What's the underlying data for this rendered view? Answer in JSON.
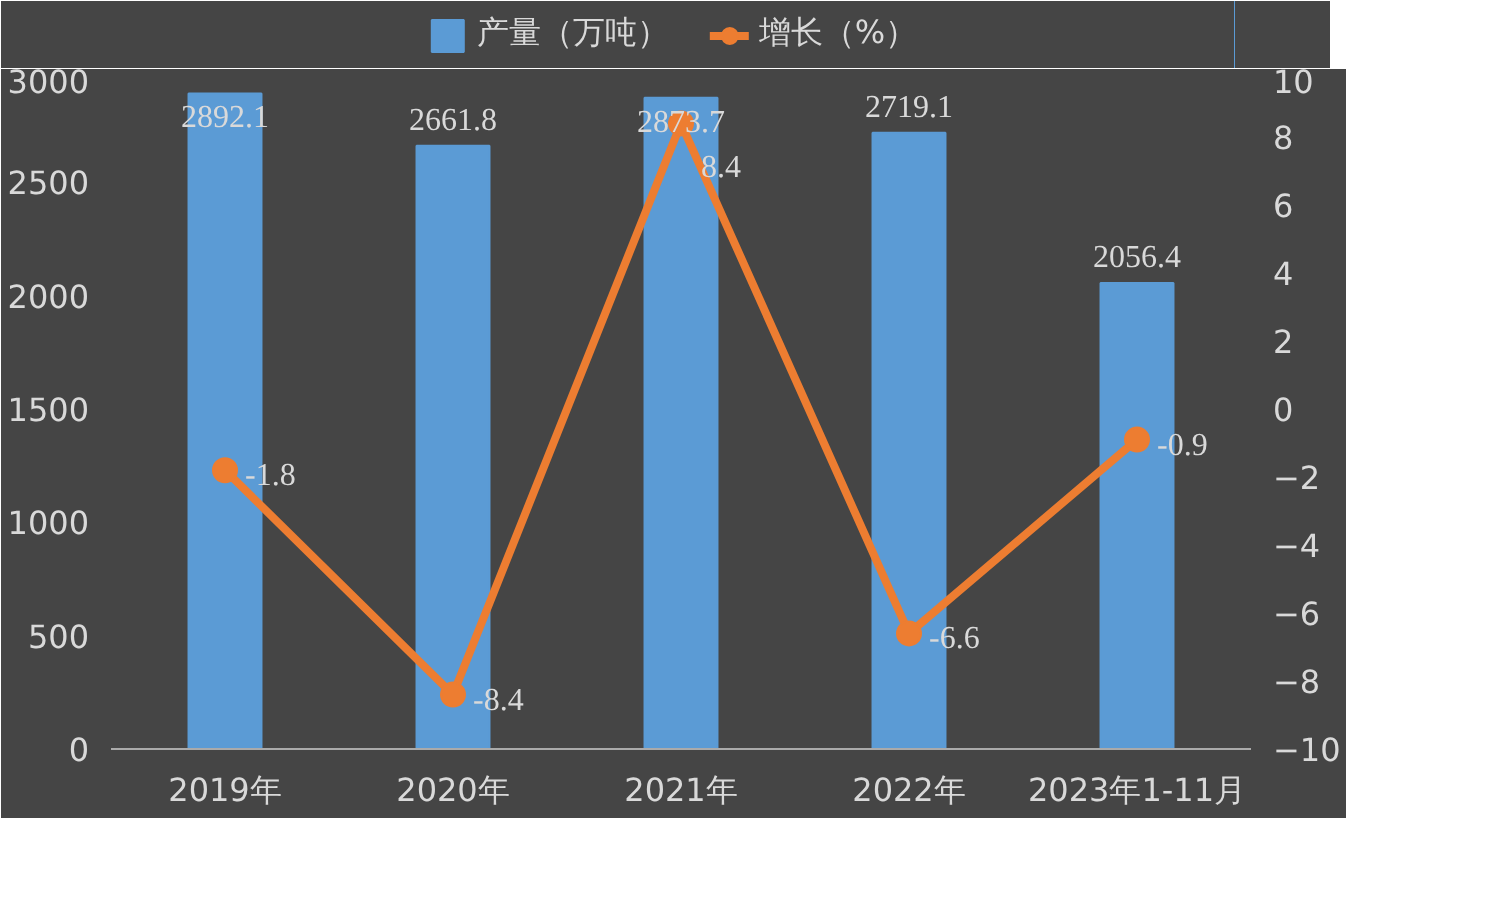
{
  "chart_data": {
    "type": "bar",
    "categories": [
      "2019年",
      "2020年",
      "2021年",
      "2022年",
      "2023年1-11月"
    ],
    "series": [
      {
        "name": "产量（万吨）",
        "color": "#5b9bd5",
        "values": [
          2892.1,
          2661.8,
          2873.7,
          2719.1,
          2056.4
        ]
      },
      {
        "name": "增长（%）",
        "type": "line",
        "axis": "y2",
        "color": "#ed7d31",
        "values": [
          -1.8,
          -8.4,
          8.4,
          -6.6,
          -0.9
        ]
      }
    ],
    "ylim": [
      0,
      3000
    ],
    "yticks": [
      0,
      500,
      1000,
      1500,
      2000,
      2500,
      3000
    ],
    "y2lim": [
      -10,
      10
    ],
    "y2ticks": [
      -10,
      -8,
      -6,
      -4,
      -2,
      0,
      2,
      4,
      6,
      8,
      10
    ],
    "data_labels": true,
    "legend": "top",
    "marker": "circle",
    "grid": false
  }
}
